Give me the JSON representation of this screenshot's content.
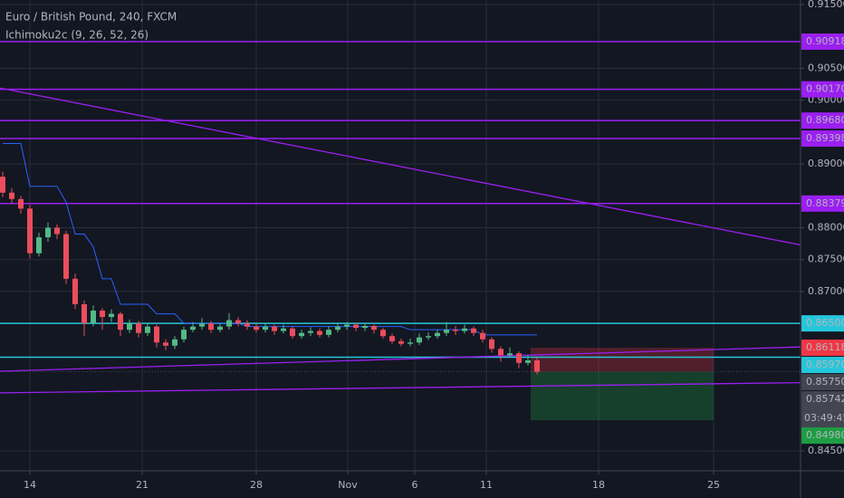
{
  "chart_data": {
    "type": "candlestick",
    "title": "Euro / British Pound, 240, FXCM",
    "subtitle": "Ichimoku2c (9, 26, 52, 26)",
    "up_color": "#53b987",
    "down_color": "#eb4d5c",
    "candles": [
      [
        0.888,
        0.8888,
        0.8848,
        0.8855
      ],
      [
        0.8855,
        0.8862,
        0.8838,
        0.8845
      ],
      [
        0.8845,
        0.885,
        0.8822,
        0.883
      ],
      [
        0.883,
        0.8836,
        0.8752,
        0.876
      ],
      [
        0.876,
        0.8792,
        0.8755,
        0.8785
      ],
      [
        0.8785,
        0.8808,
        0.8778,
        0.88
      ],
      [
        0.88,
        0.8805,
        0.8782,
        0.879
      ],
      [
        0.879,
        0.8795,
        0.8712,
        0.872
      ],
      [
        0.872,
        0.8728,
        0.8672,
        0.868
      ],
      [
        0.868,
        0.8686,
        0.863,
        0.865
      ],
      [
        0.865,
        0.8678,
        0.8645,
        0.867
      ],
      [
        0.867,
        0.8674,
        0.864,
        0.866
      ],
      [
        0.866,
        0.8672,
        0.8652,
        0.8665
      ],
      [
        0.8665,
        0.8668,
        0.863,
        0.864
      ],
      [
        0.864,
        0.8656,
        0.8635,
        0.865
      ],
      [
        0.865,
        0.8654,
        0.8628,
        0.8635
      ],
      [
        0.8635,
        0.865,
        0.863,
        0.8645
      ],
      [
        0.8645,
        0.8648,
        0.8612,
        0.862
      ],
      [
        0.862,
        0.8625,
        0.8608,
        0.8615
      ],
      [
        0.8615,
        0.863,
        0.861,
        0.8625
      ],
      [
        0.8625,
        0.8645,
        0.862,
        0.864
      ],
      [
        0.864,
        0.8652,
        0.8636,
        0.8645
      ],
      [
        0.8645,
        0.8658,
        0.864,
        0.865
      ],
      [
        0.865,
        0.8654,
        0.8635,
        0.864
      ],
      [
        0.864,
        0.865,
        0.8636,
        0.8645
      ],
      [
        0.8645,
        0.8666,
        0.864,
        0.8655
      ],
      [
        0.8655,
        0.866,
        0.8645,
        0.865
      ],
      [
        0.865,
        0.8655,
        0.864,
        0.8645
      ],
      [
        0.8645,
        0.865,
        0.8636,
        0.864
      ],
      [
        0.864,
        0.865,
        0.8636,
        0.8645
      ],
      [
        0.8645,
        0.8648,
        0.8632,
        0.8638
      ],
      [
        0.8638,
        0.8648,
        0.8634,
        0.8642
      ],
      [
        0.8642,
        0.8646,
        0.8626,
        0.863
      ],
      [
        0.863,
        0.864,
        0.8626,
        0.8635
      ],
      [
        0.8635,
        0.8644,
        0.863,
        0.8638
      ],
      [
        0.8638,
        0.8642,
        0.8628,
        0.8632
      ],
      [
        0.8632,
        0.8646,
        0.8628,
        0.864
      ],
      [
        0.864,
        0.865,
        0.8636,
        0.8645
      ],
      [
        0.8645,
        0.8652,
        0.864,
        0.8648
      ],
      [
        0.8648,
        0.865,
        0.8638,
        0.8643
      ],
      [
        0.8643,
        0.865,
        0.8638,
        0.8646
      ],
      [
        0.8646,
        0.8648,
        0.8634,
        0.864
      ],
      [
        0.864,
        0.8643,
        0.8626,
        0.863
      ],
      [
        0.863,
        0.8634,
        0.8618,
        0.8622
      ],
      [
        0.8622,
        0.8626,
        0.8614,
        0.8618
      ],
      [
        0.8618,
        0.8626,
        0.8614,
        0.862
      ],
      [
        0.862,
        0.8634,
        0.8616,
        0.8628
      ],
      [
        0.8628,
        0.8636,
        0.8624,
        0.863
      ],
      [
        0.863,
        0.864,
        0.8626,
        0.8635
      ],
      [
        0.8635,
        0.8652,
        0.863,
        0.864
      ],
      [
        0.864,
        0.8646,
        0.8632,
        0.8638
      ],
      [
        0.8638,
        0.8648,
        0.8634,
        0.8642
      ],
      [
        0.8642,
        0.8645,
        0.863,
        0.8635
      ],
      [
        0.8635,
        0.864,
        0.862,
        0.8625
      ],
      [
        0.8625,
        0.8628,
        0.8604,
        0.861
      ],
      [
        0.861,
        0.8614,
        0.859,
        0.86
      ],
      [
        0.86,
        0.8612,
        0.8596,
        0.8603
      ],
      [
        0.8603,
        0.8606,
        0.858,
        0.8588
      ],
      [
        0.8588,
        0.86,
        0.8584,
        0.8592
      ],
      [
        0.8592,
        0.8596,
        0.857,
        0.8574
      ]
    ],
    "lines": [
      {
        "color": "#2962ff",
        "values": [
          0.8932,
          0.8932,
          0.8932,
          0.8865,
          0.8865,
          0.8865,
          0.8865,
          0.884,
          0.879,
          0.879,
          0.877,
          0.872,
          0.872,
          0.868,
          0.868,
          0.868,
          0.868,
          0.8665,
          0.8665,
          0.8665,
          0.865,
          0.865,
          0.865,
          0.865,
          0.865,
          0.865,
          0.865,
          0.8645,
          0.8645,
          0.8645,
          0.8645,
          0.8645,
          0.8645,
          0.8645,
          0.8645,
          0.8645,
          0.8645,
          0.8645,
          0.8645,
          0.8645,
          0.8645,
          0.8645,
          0.8645,
          0.8645,
          0.8645,
          0.864,
          0.864,
          0.864,
          0.864,
          0.864,
          0.864,
          0.864,
          0.864,
          0.8632,
          0.8632,
          0.8632,
          0.8632,
          0.8632,
          0.8632,
          0.8632
        ]
      }
    ],
    "trendlines": [
      {
        "color": "#9b1ff0",
        "x": [
          -0.3,
          88.1
        ],
        "y": [
          0.9019,
          0.8773
        ]
      },
      {
        "color": "#9b1ff0",
        "x": [
          -0.3,
          88.1
        ],
        "y": [
          0.8575,
          0.8613
        ]
      },
      {
        "color": "#9b1ff0",
        "x": [
          -0.3,
          88.1
        ],
        "y": [
          0.8541,
          0.8557
        ]
      }
    ],
    "levels": [
      {
        "value": 0.90918,
        "label": "0.90918",
        "color": "#9b1ff0",
        "line": "solid"
      },
      {
        "value": 0.9017,
        "label": "0.90170",
        "color": "#9b1ff0",
        "line": "solid"
      },
      {
        "value": 0.8968,
        "label": "0.89680",
        "color": "#9b1ff0",
        "line": "solid"
      },
      {
        "value": 0.89398,
        "label": "0.89398",
        "color": "#9b1ff0",
        "line": "solid"
      },
      {
        "value": 0.88379,
        "label": "0.88379",
        "color": "#9b1ff0",
        "line": "solid"
      },
      {
        "value": 0.865,
        "label": "0.86500",
        "color": "#26c6da",
        "line": "solid"
      },
      {
        "value": 0.86118,
        "label": "0.86118",
        "color": "#f23645",
        "line": "none"
      },
      {
        "value": 0.8597,
        "label": "0.85970",
        "color": "#26c6da",
        "line": "solid"
      },
      {
        "value": 0.8575,
        "label": "0.85750",
        "color": "#434651",
        "line": "none"
      },
      {
        "value": 0.85742,
        "label": "0.85742",
        "color": "#434651",
        "line": "dotted"
      },
      {
        "value": 0.8498,
        "label": "0.84980",
        "color": "#1e9d44",
        "line": "none"
      }
    ],
    "countdown": "03:49:45",
    "position": {
      "x": [
        58.3,
        78.5
      ],
      "entry": 0.85742,
      "stop": 0.86118,
      "target": 0.8498
    },
    "xlim": [
      -0.3,
      88.1
    ],
    "xticks": [
      {
        "value": 3,
        "label": "14"
      },
      {
        "value": 15.4,
        "label": "21"
      },
      {
        "value": 28,
        "label": "28"
      },
      {
        "value": 38.1,
        "label": "Nov"
      },
      {
        "value": 45.5,
        "label": "6"
      },
      {
        "value": 53.4,
        "label": "11"
      },
      {
        "value": 65.8,
        "label": "18"
      },
      {
        "value": 78.5,
        "label": "25"
      }
    ],
    "ylim": [
      0.845,
      0.915
    ],
    "yticks": [
      {
        "value": 0.915,
        "label": "0.91500"
      },
      {
        "value": 0.905,
        "label": "0.90500"
      },
      {
        "value": 0.9,
        "label": "0.90000"
      },
      {
        "value": 0.89,
        "label": "0.89000"
      },
      {
        "value": 0.88,
        "label": "0.88000"
      },
      {
        "value": 0.875,
        "label": "0.87500"
      },
      {
        "value": 0.87,
        "label": "0.87000"
      },
      {
        "value": 0.845,
        "label": "0.84500"
      }
    ],
    "grid": true
  }
}
